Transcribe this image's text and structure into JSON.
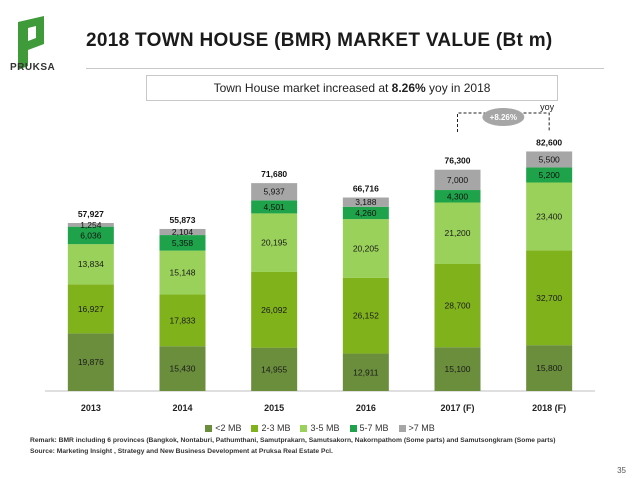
{
  "brand": {
    "name": "PRUKSA",
    "logo_color": "#3f9a3a"
  },
  "slide": {
    "title": "2018 TOWN HOUSE (BMR) MARKET VALUE (Bt m)",
    "headline_prefix": "Town House market increased at ",
    "headline_highlight": "8.26%",
    "headline_suffix": " yoy in 2018",
    "remark": "Remark: BMR including 6 provinces (Bangkok, Nontaburi, Pathumthani, Samutprakarn, Samutsakorn, Nakornpathom (Some parts) and Samutsongkram (Some parts)",
    "source": "Source: Marketing Insight , Strategy and New Business Development at Pruksa Real Estate Pcl.",
    "page_number": "35"
  },
  "chart_data": {
    "type": "bar",
    "stacked": true,
    "categories": [
      "2013",
      "2014",
      "2015",
      "2016",
      "2017 (F)",
      "2018 (F)"
    ],
    "series": [
      {
        "name": "<2 MB",
        "color": "#6b8e3c",
        "values": [
          19876,
          15430,
          14955,
          12911,
          15100,
          15800
        ]
      },
      {
        "name": "2-3 MB",
        "color": "#80b21c",
        "values": [
          16927,
          17833,
          26092,
          26152,
          28700,
          32700
        ]
      },
      {
        "name": "3-5 MB",
        "color": "#9ad15a",
        "values": [
          13834,
          15148,
          20195,
          20205,
          21200,
          23400
        ]
      },
      {
        "name": "5-7 MB",
        "color": "#1ea34a",
        "values": [
          6036,
          5358,
          4501,
          4260,
          4300,
          5200
        ]
      },
      {
        "name": ">7 MB",
        "color": "#a6a6a6",
        "values": [
          1254,
          2104,
          5937,
          3188,
          7000,
          5500
        ]
      }
    ],
    "labels": [
      [
        "19,876",
        "15,430",
        "14,955",
        "12,911",
        "15,100",
        "15,800"
      ],
      [
        "16,927",
        "17,833",
        "26,092",
        "26,152",
        "28,700",
        "32,700"
      ],
      [
        "13,834",
        "15,148",
        "20,195",
        "20,205",
        "21,200",
        "23,400"
      ],
      [
        "6,036",
        "5,358",
        "4,501",
        "4,260",
        "4,300",
        "5,200"
      ],
      [
        "1,254",
        "2,104",
        "5,937",
        "3,188",
        "7,000",
        "5,500"
      ]
    ],
    "totals": [
      "57,927",
      "55,873",
      "71,680",
      "66,716",
      "76,300",
      "82,600"
    ],
    "annotation": {
      "text": "+8.26%",
      "caption": "yoy",
      "from": "2017 (F)",
      "to": "2018 (F)",
      "color": "#a6a6a6"
    },
    "ylim": [
      0,
      90000
    ],
    "grid": false,
    "legend_position": "bottom"
  }
}
